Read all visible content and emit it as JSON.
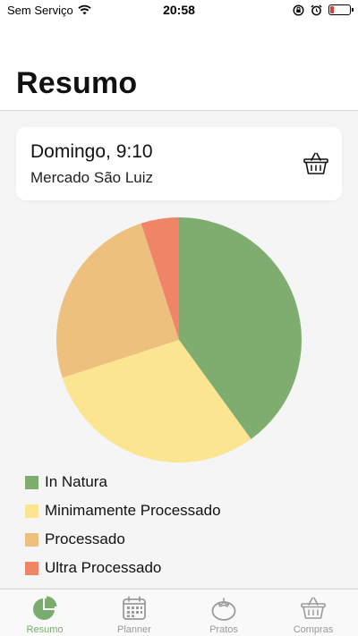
{
  "status_bar": {
    "carrier": "Sem Serviço",
    "time": "20:58",
    "battery_color": "#e53935"
  },
  "header": {
    "title": "Resumo"
  },
  "purchase_card": {
    "title": "Domingo, 9:10",
    "store": "Mercado São Luiz",
    "icon": "basket-icon"
  },
  "chart_data": {
    "type": "pie",
    "slices": [
      {
        "label": "In Natura",
        "value": 40,
        "color": "#7fad6f"
      },
      {
        "label": "Minimamente Processado",
        "value": 30,
        "color": "#fbe591"
      },
      {
        "label": "Processado",
        "value": 25,
        "color": "#eec07e"
      },
      {
        "label": "Ultra Processado",
        "value": 5,
        "color": "#f08467"
      }
    ],
    "legend_position": "bottom-left"
  },
  "tabbar": {
    "accent": "#7bac6f",
    "inactive_color": "#9a9a9a",
    "tabs": [
      {
        "label": "Resumo",
        "icon": "pie-chart-icon",
        "active": true
      },
      {
        "label": "Planner",
        "icon": "calendar-icon",
        "active": false
      },
      {
        "label": "Pratos",
        "icon": "tomato-icon",
        "active": false
      },
      {
        "label": "Compras",
        "icon": "basket-icon",
        "active": false
      }
    ]
  }
}
